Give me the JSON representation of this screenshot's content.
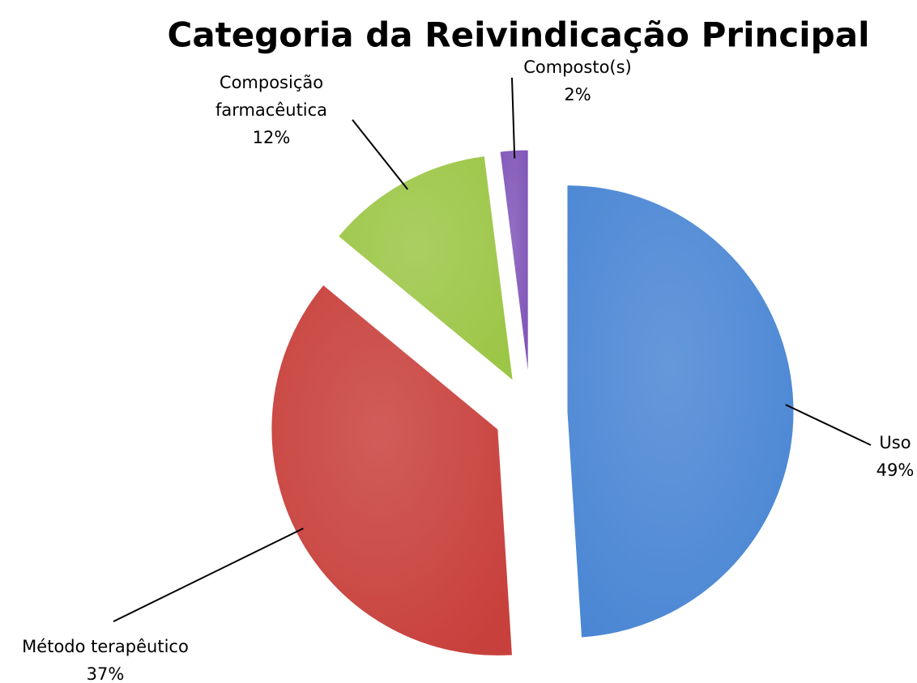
{
  "chart_data": {
    "type": "pie",
    "title": "Categoria da Reivindicação Principal",
    "categories": [
      "Uso",
      "Método terapêutico",
      "Composição farmacêutica",
      "Composto(s)"
    ],
    "values": [
      49,
      37,
      12,
      2
    ],
    "value_labels": [
      "49%",
      "37%",
      "12%",
      "2%"
    ],
    "colors": [
      "#4a86d4",
      "#c8403c",
      "#9cc646",
      "#8055b8"
    ]
  }
}
